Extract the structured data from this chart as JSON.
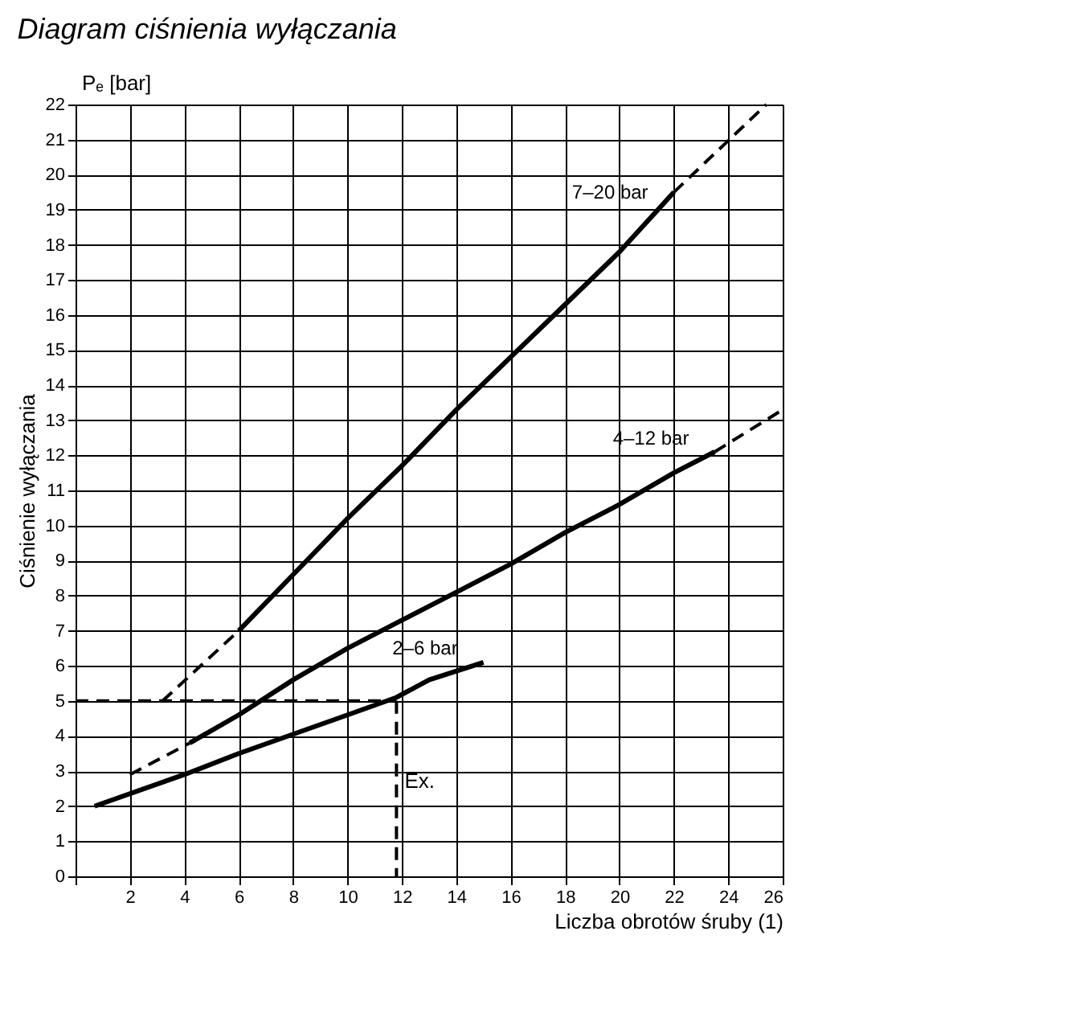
{
  "chart_data": {
    "type": "line",
    "title": "Diagram ciśnienia wyłączania",
    "xlabel": "Liczba obrotów śruby (1)",
    "ylabel": "Ciśnienie wyłączania",
    "xlim": [
      0,
      26
    ],
    "xticks": [
      {
        "value": 0,
        "label": null
      },
      2,
      4,
      6,
      8,
      10,
      12,
      14,
      16,
      18,
      20,
      22,
      24,
      26
    ],
    "ylim": [
      0,
      22
    ],
    "yticks": [
      0,
      1,
      2,
      3,
      4,
      5,
      6,
      7,
      8,
      9,
      10,
      11,
      12,
      13,
      14,
      15,
      16,
      17,
      18,
      19,
      20,
      21,
      22
    ],
    "grid": true,
    "marker": "none",
    "line_style": "solid",
    "annotations": [
      "Pₑ [bar]",
      {
        "text": "Ex.",
        "x": 11.8,
        "y": 2.7
      }
    ],
    "series": [
      {
        "name": "7–20 bar",
        "color": "#000000",
        "x": [
          6,
          8,
          10,
          12,
          14,
          16,
          18,
          20,
          22
        ],
        "values": [
          7,
          8.6,
          10.2,
          11.7,
          13.3,
          14.8,
          16.3,
          17.8,
          19.5
        ]
      },
      {
        "color": "#000000",
        "line_style": "dashed",
        "x": [
          3.2,
          6
        ],
        "values": [
          5,
          7
        ]
      },
      {
        "color": "#000000",
        "line_style": "dashed",
        "x": [
          22,
          25.4
        ],
        "values": [
          19.5,
          22
        ]
      },
      {
        "name": "4–12 bar",
        "color": "#000000",
        "x": [
          4.2,
          6,
          8,
          10,
          12,
          14,
          16,
          18,
          20,
          22,
          23.5
        ],
        "values": [
          3.8,
          4.6,
          5.6,
          6.5,
          7.3,
          8.1,
          8.9,
          9.8,
          10.6,
          11.5,
          12.1
        ]
      },
      {
        "color": "#000000",
        "line_style": "dashed",
        "x": [
          2,
          4.2
        ],
        "values": [
          2.9,
          3.8
        ]
      },
      {
        "color": "#000000",
        "line_style": "dashed",
        "x": [
          23.5,
          26
        ],
        "values": [
          12.1,
          13.3
        ]
      },
      {
        "name": "2–6 bar",
        "color": "#000000",
        "x": [
          0.7,
          4,
          6,
          8,
          10,
          11.8,
          13,
          15
        ],
        "values": [
          2,
          2.9,
          3.5,
          4.05,
          4.6,
          5.1,
          5.6,
          6.1
        ]
      },
      {
        "color": "#000000",
        "line_style": "dashed",
        "x": [
          0,
          11.8
        ],
        "values": [
          5,
          5
        ]
      },
      {
        "color": "#000000",
        "line_style": "dashed",
        "x": [
          11.8,
          11.8
        ],
        "values": [
          5,
          0
        ]
      }
    ]
  }
}
